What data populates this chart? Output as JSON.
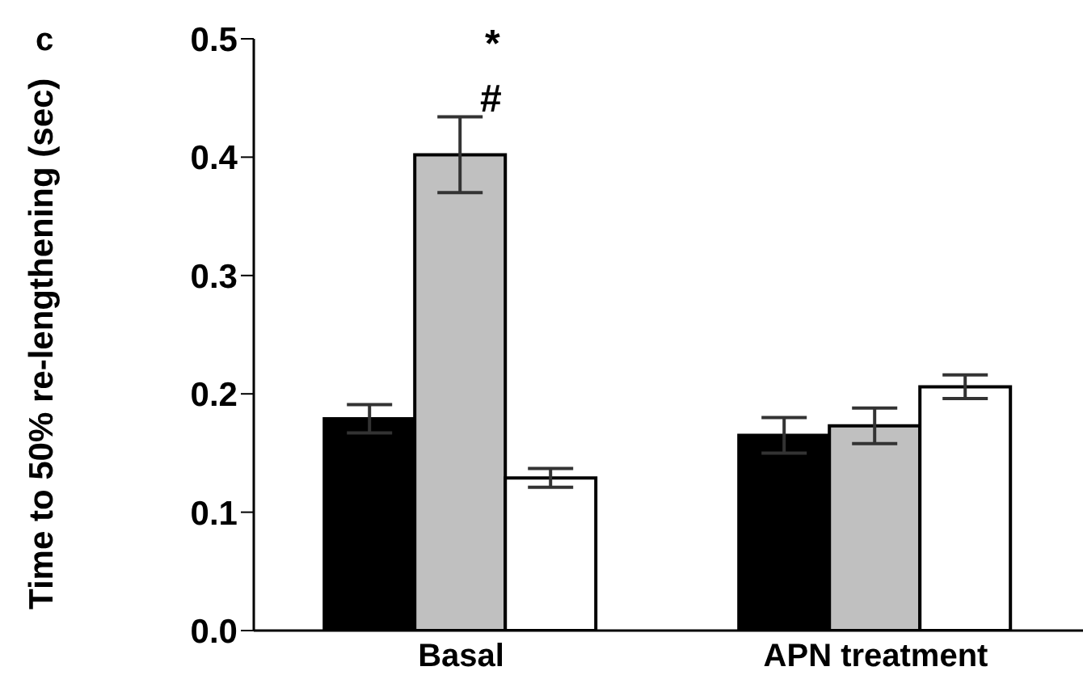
{
  "chart_data": {
    "type": "bar",
    "ylabel": "Time to 50% re-lengthening (sec)",
    "categories": [
      "Basal",
      "APN treatment"
    ],
    "series": [
      {
        "color": "#000000",
        "values": [
          0.179,
          0.165
        ],
        "errors": [
          0.012,
          0.015
        ]
      },
      {
        "color": "#c0c0c0",
        "values": [
          0.402,
          0.173
        ],
        "errors": [
          0.032,
          0.015
        ]
      },
      {
        "color": "#ffffff",
        "values": [
          0.129,
          0.206
        ],
        "errors": [
          0.008,
          0.01
        ]
      }
    ],
    "ylim": [
      0,
      0.5
    ],
    "yticks": [
      {
        "value": 0,
        "label": "0.0"
      },
      0.1,
      0.2,
      0.3,
      0.4,
      0.5
    ],
    "grid": false,
    "legend": false,
    "annotations": [
      "c",
      "#",
      "*"
    ]
  }
}
